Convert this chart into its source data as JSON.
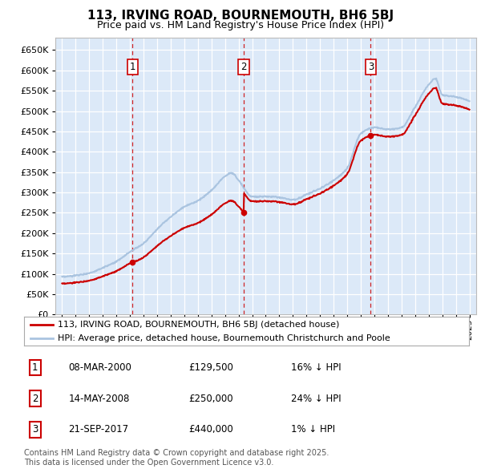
{
  "title": "113, IRVING ROAD, BOURNEMOUTH, BH6 5BJ",
  "subtitle": "Price paid vs. HM Land Registry's House Price Index (HPI)",
  "background_color": "#ffffff",
  "plot_bg_color": "#dce9f8",
  "hpi_color": "#aac4e0",
  "price_color": "#cc0000",
  "vline_color": "#cc0000",
  "sales": [
    {
      "date_num": 2000.19,
      "price": 129500,
      "label": "1"
    },
    {
      "date_num": 2008.37,
      "price": 250000,
      "label": "2"
    },
    {
      "date_num": 2017.73,
      "price": 440000,
      "label": "3"
    }
  ],
  "sale_annotations": [
    {
      "label": "1",
      "date": "08-MAR-2000",
      "price": "£129,500",
      "hpi_diff": "16% ↓ HPI"
    },
    {
      "label": "2",
      "date": "14-MAY-2008",
      "price": "£250,000",
      "hpi_diff": "24% ↓ HPI"
    },
    {
      "label": "3",
      "date": "21-SEP-2017",
      "price": "£440,000",
      "hpi_diff": "1% ↓ HPI"
    }
  ],
  "legend_line1": "113, IRVING ROAD, BOURNEMOUTH, BH6 5BJ (detached house)",
  "legend_line2": "HPI: Average price, detached house, Bournemouth Christchurch and Poole",
  "footer": "Contains HM Land Registry data © Crown copyright and database right 2025.\nThis data is licensed under the Open Government Licence v3.0.",
  "ylim": [
    0,
    680000
  ],
  "ytick_step": 50000,
  "xmin": 1994.5,
  "xmax": 2025.5,
  "hpi_knots_x": [
    1995,
    1996,
    1997,
    1998,
    1999,
    2000,
    2001,
    2002,
    2003,
    2004,
    2005,
    2006,
    2007,
    2007.5,
    2008,
    2009,
    2010,
    2011,
    2012,
    2013,
    2014,
    2015,
    2016,
    2017,
    2018,
    2019,
    2020,
    2021,
    2022,
    2022.5,
    2023,
    2024,
    2025
  ],
  "hpi_knots_y": [
    92000,
    96000,
    102000,
    115000,
    130000,
    154000,
    175000,
    210000,
    240000,
    265000,
    280000,
    305000,
    340000,
    348000,
    330000,
    290000,
    290000,
    288000,
    282000,
    295000,
    310000,
    330000,
    360000,
    445000,
    460000,
    455000,
    460000,
    510000,
    565000,
    580000,
    540000,
    535000,
    525000
  ]
}
